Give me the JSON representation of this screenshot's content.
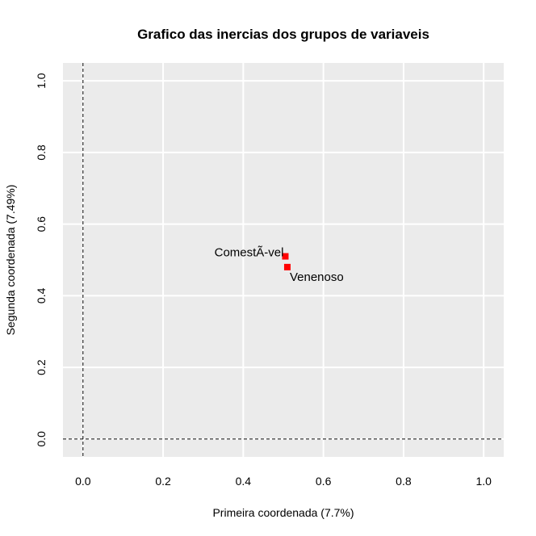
{
  "chart_data": {
    "type": "scatter",
    "title": "Grafico das inercias dos grupos de variaveis",
    "xlabel": "Primeira coordenada (7.7%)",
    "ylabel": "Segunda coordenada (7.49%)",
    "xlim": [
      -0.05,
      1.05
    ],
    "ylim": [
      -0.05,
      1.05
    ],
    "xticks": [
      "0.0",
      "0.2",
      "0.4",
      "0.6",
      "0.8",
      "1.0"
    ],
    "yticks": [
      "0.0",
      "0.2",
      "0.4",
      "0.6",
      "0.8",
      "1.0"
    ],
    "grid": true,
    "background_color": "#EBEBEB",
    "grid_color": "#FFFFFF",
    "point_color": "#FF0000",
    "reference_lines": {
      "x": 0,
      "y": 0,
      "style": "dashed"
    },
    "points": [
      {
        "label": "ComestÃ-vel",
        "x": 0.505,
        "y": 0.51,
        "label_position": "left"
      },
      {
        "label": "Venenoso",
        "x": 0.51,
        "y": 0.48,
        "label_position": "below-right"
      }
    ]
  }
}
